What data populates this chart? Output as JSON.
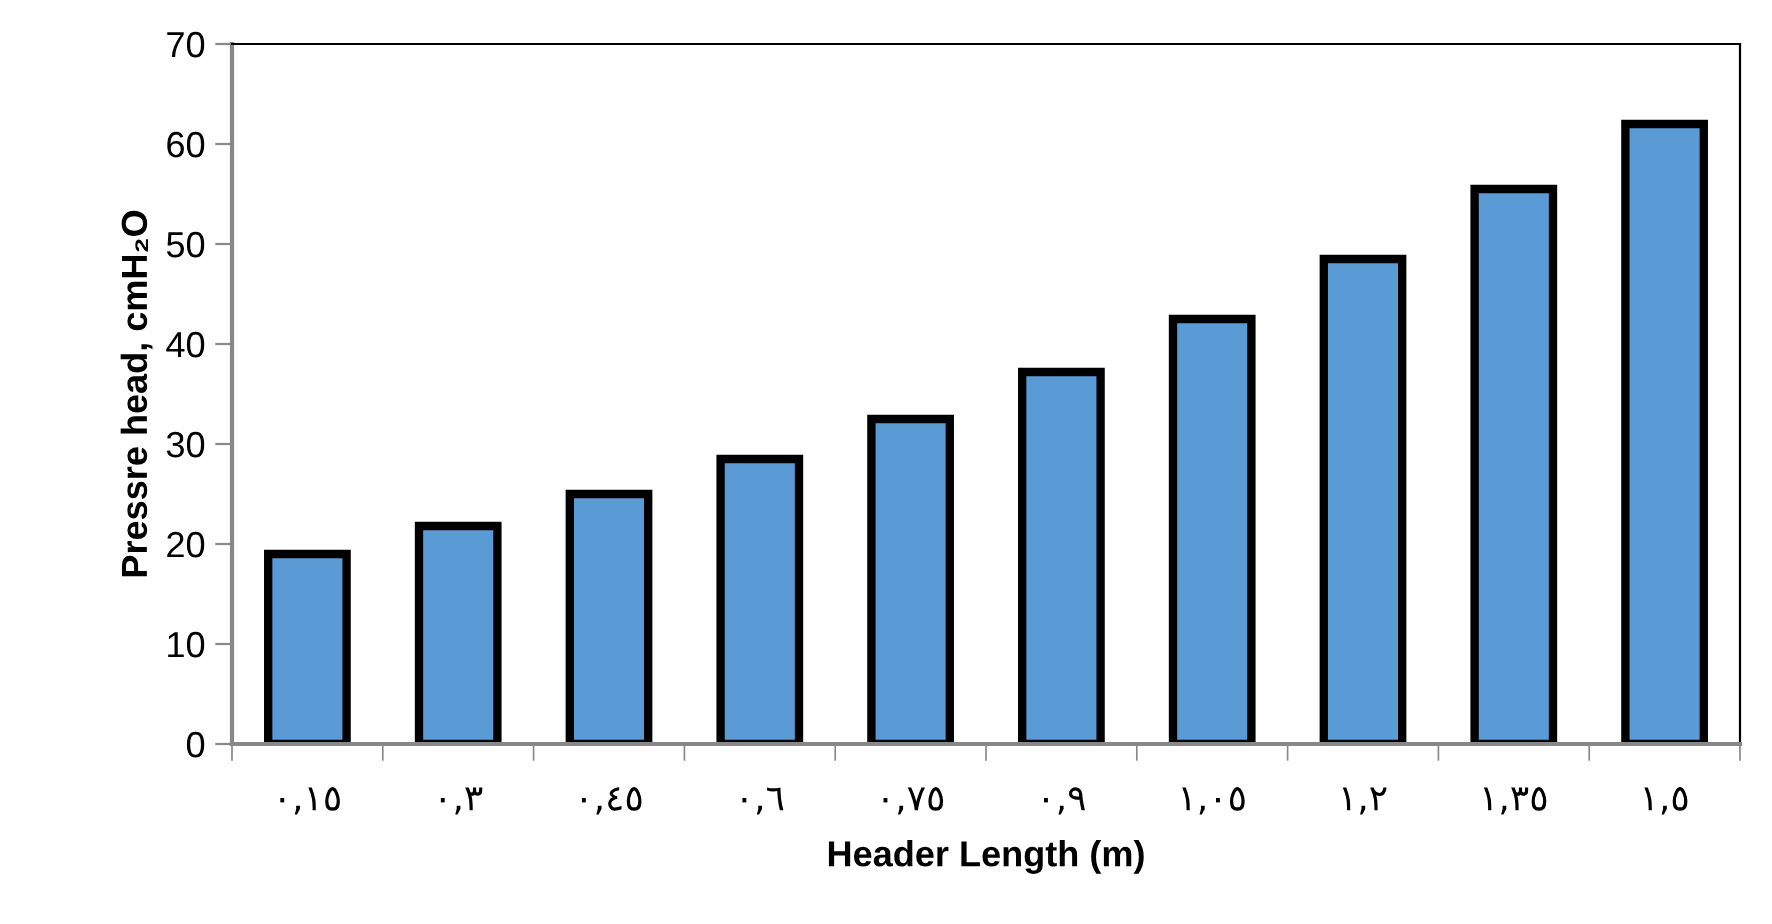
{
  "chart_data": {
    "type": "bar",
    "xlabel": "Header Length (m)",
    "ylabel": "Pressre head, cmH₂O",
    "categories": [
      "٠,١٥",
      "٠,٣",
      "٠,٤٥",
      "٠,٦",
      "٠,٧٥",
      "٠,٩",
      "١,٠٥",
      "١,٢",
      "١,٣٥",
      "١,٥"
    ],
    "values": [
      19,
      21.8,
      25,
      28.5,
      32.5,
      37.2,
      42.5,
      48.5,
      55.5,
      62
    ],
    "color": "#5b9bd5",
    "ylim": [
      0,
      70
    ],
    "yticks": [
      0,
      10,
      20,
      30,
      40,
      50,
      60,
      70
    ],
    "grid": false,
    "legend": false
  }
}
